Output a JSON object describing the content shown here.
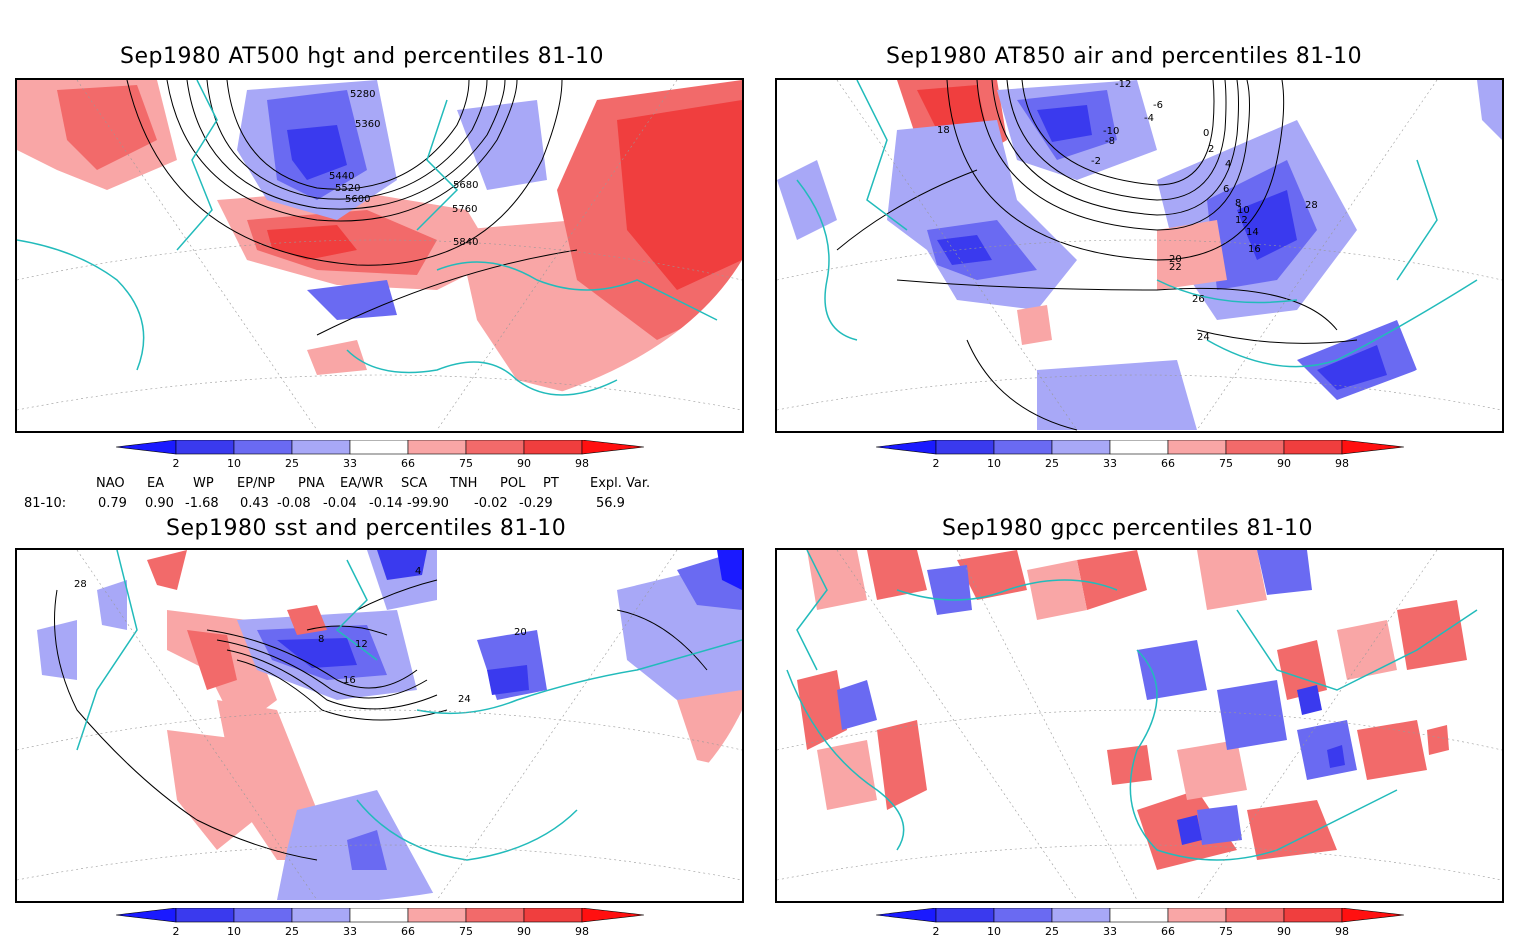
{
  "panels": [
    {
      "id": "z500",
      "title": "Sep1980 AT500 hgt and percentiles 81-10",
      "contour_labels": [
        "5280",
        "5360",
        "5440",
        "5520",
        "5600",
        "5680",
        "5760",
        "5840"
      ]
    },
    {
      "id": "t850",
      "title": "Sep1980 AT850 air and percentiles 81-10",
      "contour_labels": [
        "-12",
        "-10",
        "-8",
        "-6",
        "-4",
        "-2",
        "0",
        "2",
        "4",
        "6",
        "8",
        "10",
        "12",
        "14",
        "16",
        "18",
        "20",
        "22",
        "24",
        "26",
        "28"
      ]
    },
    {
      "id": "sst",
      "title": "Sep1980 sst and percentiles 81-10",
      "contour_labels": [
        "4",
        "8",
        "12",
        "16",
        "20",
        "24",
        "28"
      ]
    },
    {
      "id": "gpcc",
      "title": "Sep1980 gpcc percentiles 81-10",
      "contour_labels": []
    }
  ],
  "colorbar": {
    "labels": [
      "2",
      "10",
      "25",
      "33",
      "66",
      "75",
      "90",
      "98"
    ],
    "colors": {
      "below2": "#1a1aff",
      "b2_10": "#3a3aee",
      "b10_25": "#6a6af2",
      "b25_33": "#a8a8f7",
      "mid": "#ffffff",
      "a66_75": "#f9a6a6",
      "a75_90": "#f26a6a",
      "a90_98": "#f03e3e",
      "above98": "#ff1010"
    }
  },
  "indices": {
    "headers": [
      "NAO",
      "EA",
      "WP",
      "EP/NP",
      "PNA",
      "EA/WR",
      "SCA",
      "TNH",
      "POL",
      "PT",
      "Expl. Var."
    ],
    "row_label": "81-10:",
    "values": [
      "0.79",
      "0.90",
      "-1.68",
      "0.43",
      "-0.08",
      "-0.04",
      "-0.14",
      "-99.90",
      "-0.02",
      "-0.29",
      "56.9"
    ]
  },
  "colors": {
    "coast": "#22bbbb",
    "contour": "#000000",
    "grid": "#999999"
  }
}
